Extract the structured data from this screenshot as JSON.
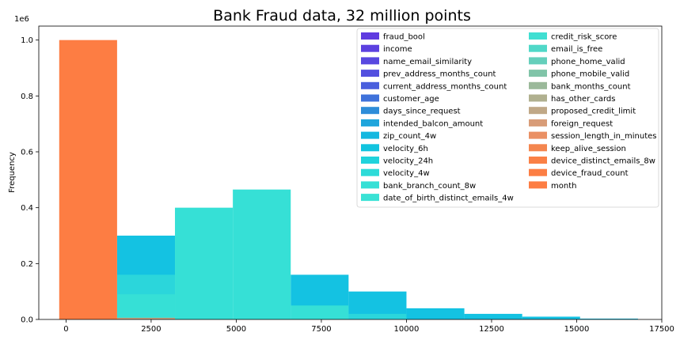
{
  "chart_data": {
    "type": "bar",
    "title": "Bank Fraud data, 32 million points",
    "xlabel": "",
    "ylabel": "Frequency",
    "y_offset_label": "1e6",
    "xlim": [
      -800,
      17500
    ],
    "ylim": [
      0,
      1.05
    ],
    "x_ticks": [
      0,
      2500,
      5000,
      7500,
      10000,
      12500,
      15000,
      17500
    ],
    "y_ticks": [
      0.0,
      0.2,
      0.4,
      0.6,
      0.8,
      1.0
    ],
    "bin_edges": [
      -200,
      1500,
      3200,
      4900,
      6600,
      8300,
      10000,
      11700,
      13400,
      15100,
      16800
    ],
    "legend": {
      "placement": "top-right",
      "columns": 2,
      "entries": [
        {
          "name": "fraud_bool",
          "color": "#5f3be0"
        },
        {
          "name": "income",
          "color": "#5c41e0"
        },
        {
          "name": "name_email_similarity",
          "color": "#5848e0"
        },
        {
          "name": "prev_address_months_count",
          "color": "#5350df"
        },
        {
          "name": "current_address_months_count",
          "color": "#4a5fdd"
        },
        {
          "name": "customer_age",
          "color": "#3f72db"
        },
        {
          "name": "days_since_request",
          "color": "#2e8dd9"
        },
        {
          "name": "intended_balcon_amount",
          "color": "#1fa5dc"
        },
        {
          "name": "zip_count_4w",
          "color": "#14b8e0"
        },
        {
          "name": "velocity_6h",
          "color": "#12c4df"
        },
        {
          "name": "velocity_24h",
          "color": "#20d3dc"
        },
        {
          "name": "velocity_4w",
          "color": "#2ddbd8"
        },
        {
          "name": "bank_branch_count_8w",
          "color": "#35e0d6"
        },
        {
          "name": "date_of_birth_distinct_emails_4w",
          "color": "#3ae2d5"
        },
        {
          "name": "credit_risk_score",
          "color": "#40dfd2"
        },
        {
          "name": "email_is_free",
          "color": "#50d8c8"
        },
        {
          "name": "phone_home_valid",
          "color": "#65cfbb"
        },
        {
          "name": "phone_mobile_valid",
          "color": "#80c4a8"
        },
        {
          "name": "bank_months_count",
          "color": "#9bb99a"
        },
        {
          "name": "has_other_cards",
          "color": "#b0b08f"
        },
        {
          "name": "proposed_credit_limit",
          "color": "#c0a887"
        },
        {
          "name": "foreign_request",
          "color": "#d89c78"
        },
        {
          "name": "session_length_in_minutes",
          "color": "#ea9064"
        },
        {
          "name": "keep_alive_session",
          "color": "#f4864f"
        },
        {
          "name": "device_distinct_emails_8w",
          "color": "#fa8046"
        },
        {
          "name": "device_fraud_count",
          "color": "#fc7e44"
        },
        {
          "name": "month",
          "color": "#fd7d43"
        }
      ]
    },
    "visible_bars": [
      {
        "series": "zip_count_4w",
        "color": "#14c2e2",
        "values": [
          0,
          0.3,
          0,
          0,
          0.16,
          0.1,
          0.04,
          0.02,
          0.01,
          0.003
        ]
      },
      {
        "series": "velocity_24h",
        "color": "#2bd6db",
        "values": [
          0,
          0.16,
          0,
          0,
          0,
          0.02,
          0,
          0,
          0,
          0
        ]
      },
      {
        "series": "velocity_4w",
        "color": "#36e0d6",
        "values": [
          0,
          0.09,
          0.4,
          0.465,
          0.05,
          0,
          0,
          0,
          0,
          0
        ]
      },
      {
        "series": "proposed_credit_limit",
        "color": "#c7a37f",
        "values": [
          0,
          0.006,
          0,
          0,
          0,
          0,
          0,
          0,
          0,
          0
        ]
      },
      {
        "series": "month",
        "color": "#fd7d43",
        "values": [
          1.0,
          0,
          0,
          0,
          0,
          0,
          0,
          0,
          0,
          0
        ]
      }
    ]
  }
}
